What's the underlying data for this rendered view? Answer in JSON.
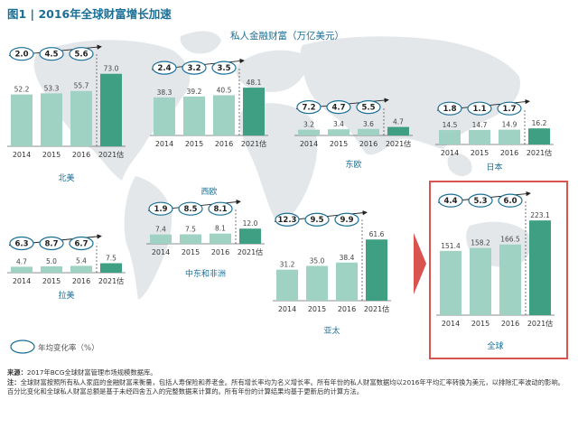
{
  "header": {
    "title": "图1 | 2016年全球财富增长加速"
  },
  "chart_data": {
    "type": "bar",
    "title": "私人金融财富（万亿美元）",
    "legend_label": "年均变化率（%）",
    "categories": [
      "2014",
      "2015",
      "2016",
      "2021估"
    ],
    "colors": {
      "actual": "#9fd2c2",
      "forecast": "#3f9f82",
      "accent": "#1b6f96",
      "highlight": "#d9534f"
    },
    "panels": [
      {
        "name": "北美",
        "values": [
          52.2,
          53.3,
          55.7,
          73.0
        ],
        "growth": [
          "2.0",
          "4.5",
          "5.6"
        ]
      },
      {
        "name": "西欧",
        "values": [
          38.3,
          39.2,
          40.5,
          48.1
        ],
        "growth": [
          "2.4",
          "3.2",
          "3.5"
        ]
      },
      {
        "name": "东欧",
        "values": [
          3.2,
          3.4,
          3.6,
          4.7
        ],
        "growth": [
          "7.2",
          "4.7",
          "5.5"
        ]
      },
      {
        "name": "日本",
        "values": [
          14.5,
          14.7,
          14.9,
          16.2
        ],
        "growth": [
          "1.8",
          "1.1",
          "1.7"
        ]
      },
      {
        "name": "拉美",
        "values": [
          4.7,
          5.0,
          5.4,
          7.5
        ],
        "growth": [
          "6.3",
          "8.7",
          "6.7"
        ]
      },
      {
        "name": "中东和非洲",
        "values": [
          7.4,
          7.5,
          8.1,
          12.0
        ],
        "growth": [
          "1.9",
          "8.5",
          "8.1"
        ]
      },
      {
        "name": "亚太",
        "values": [
          31.2,
          35.0,
          38.4,
          61.6
        ],
        "growth": [
          "12.3",
          "9.5",
          "9.9"
        ]
      },
      {
        "name": "全球",
        "values": [
          151.4,
          158.2,
          166.5,
          223.1
        ],
        "growth": [
          "4.4",
          "5.3",
          "6.0"
        ]
      }
    ]
  },
  "footer": {
    "source_label": "来源：",
    "source_text": "2017年BCG全球财富管理市场规模数据库。",
    "note_label": "注：",
    "note_text": "全球财富按照所有私人家庭的金融财富来衡量，包括人寿保险和养老金。所有增长率均为名义增长率。所有年份的私人财富数据均以2016年平均汇率转换为美元，以排除汇率波动的影响。百分比变化和全球私人财富总额是基于未经四舍五入的完整数据来计算的。所有年份的计算结果均基于更新后的计算方法。"
  }
}
